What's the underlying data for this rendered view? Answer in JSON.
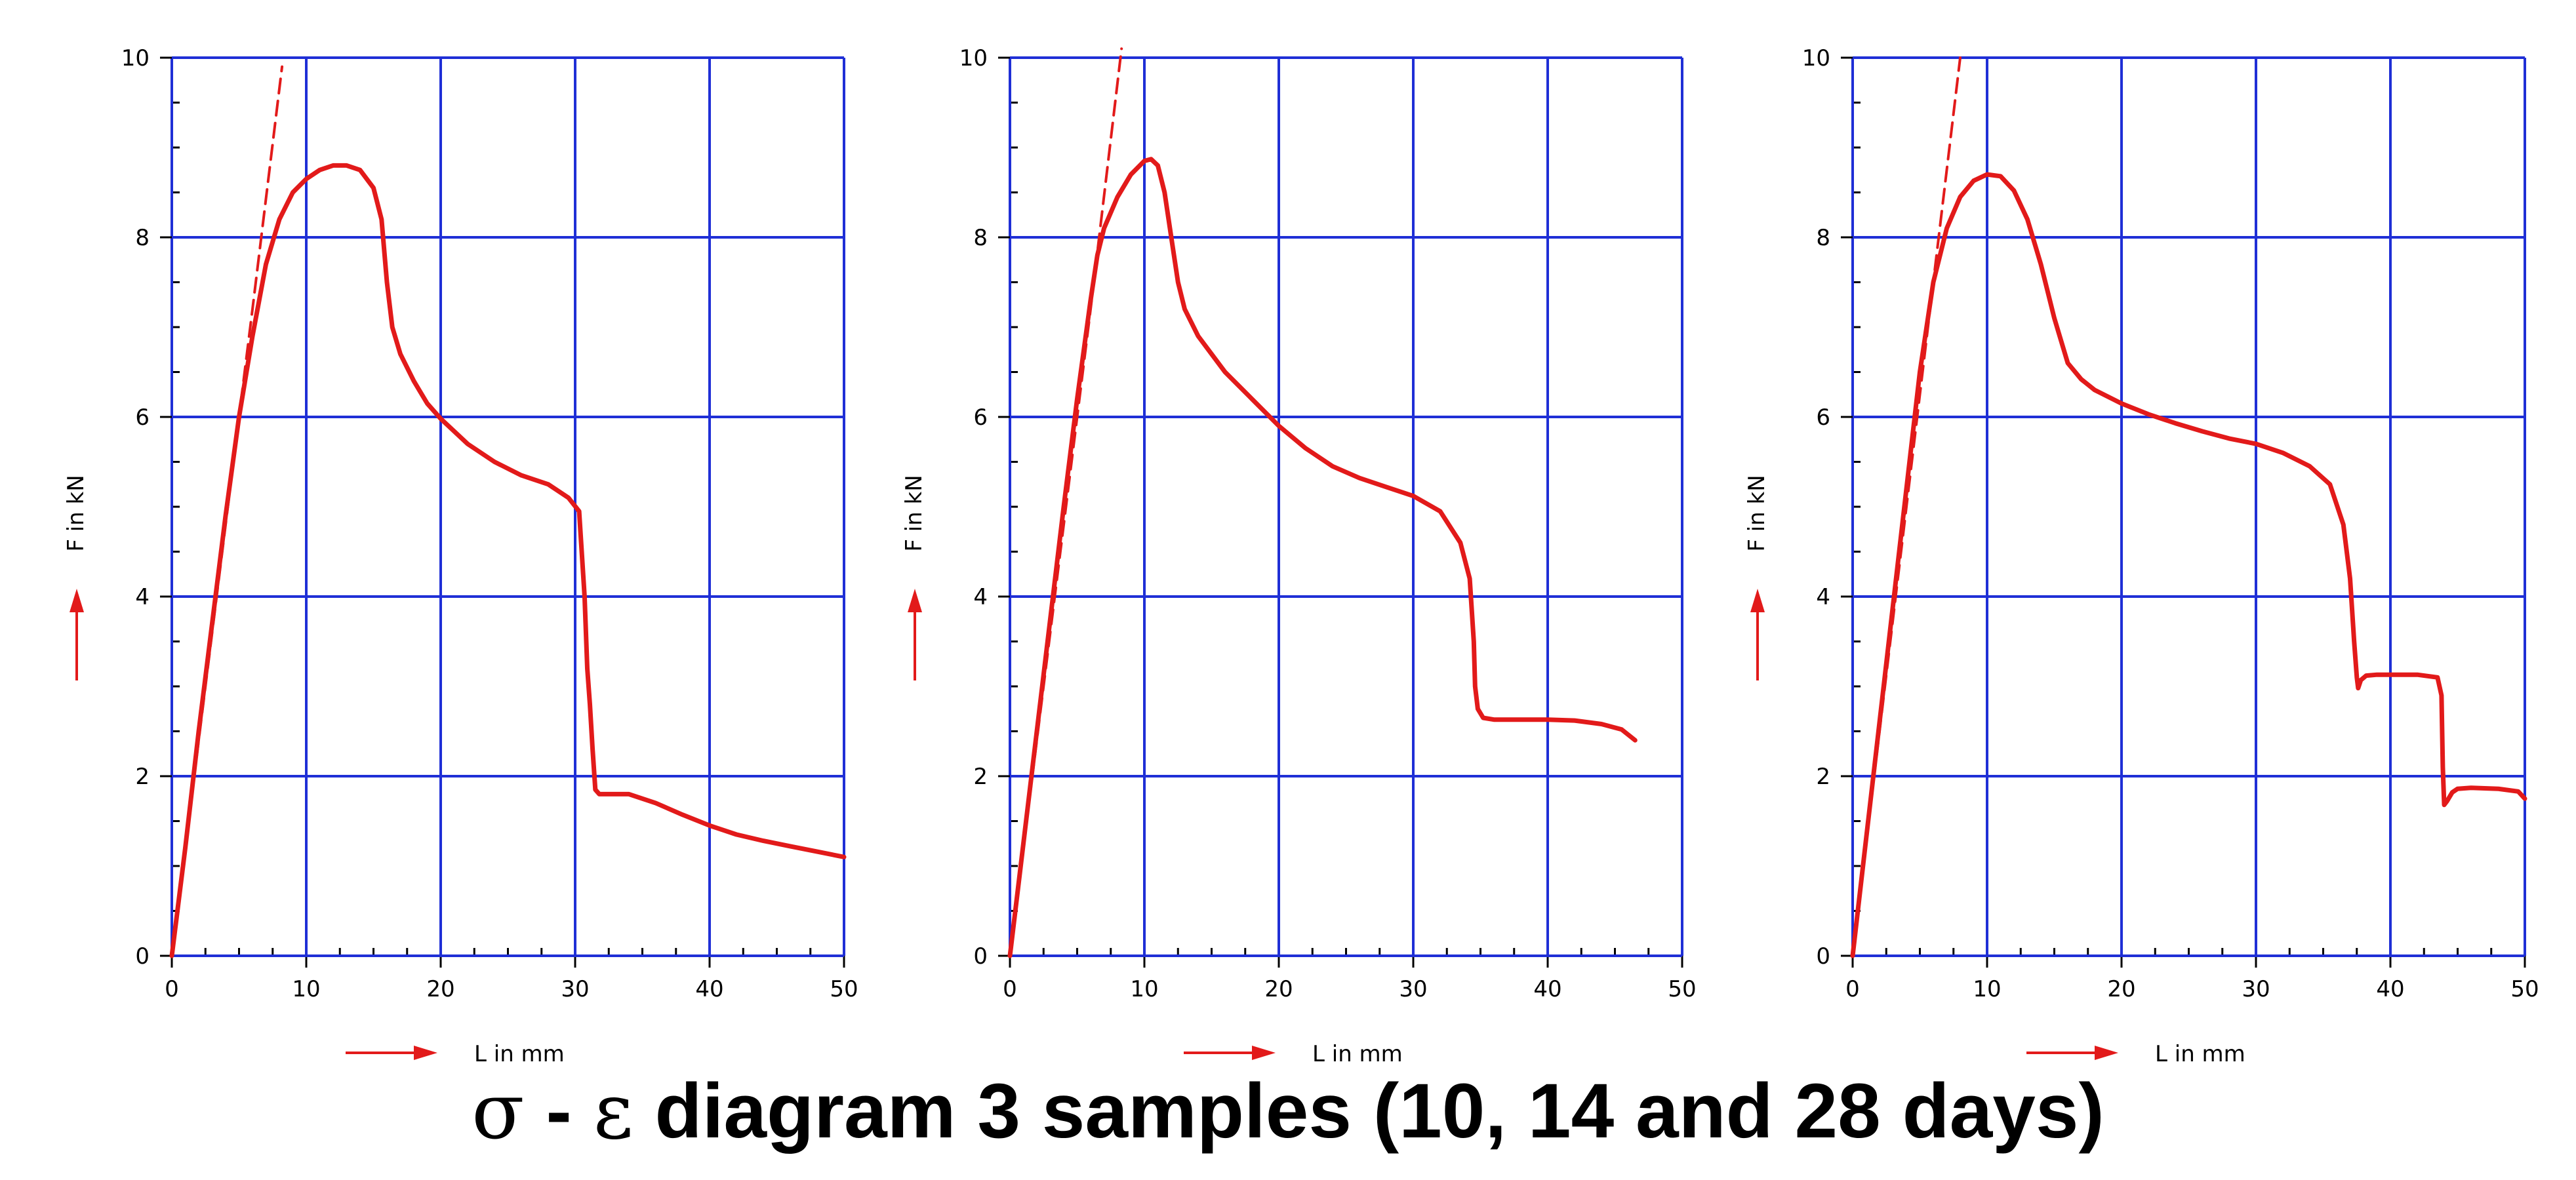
{
  "colors": {
    "grid": "#1f2fd6",
    "curve": "#e21a1a",
    "axis": "#000000",
    "background": "#ffffff"
  },
  "caption": {
    "greek_left": "σ",
    "dash": " - ",
    "greek_right": "ε",
    "rest": " diagram 3 samples (10, 14 and 28 days)"
  },
  "chart_data": [
    {
      "type": "line",
      "xlabel": "L in mm",
      "ylabel": "F in kN",
      "xlim": [
        0,
        50
      ],
      "ylim": [
        0,
        10
      ],
      "x_ticks": [
        "0",
        "10",
        "20",
        "30",
        "40",
        "50"
      ],
      "y_ticks": [
        "0",
        "2",
        "4",
        "6",
        "8",
        "10"
      ],
      "grid": true,
      "series": [
        {
          "style": "solid",
          "x": [
            0,
            1,
            2,
            3,
            4,
            5,
            6,
            7,
            8,
            9,
            10,
            11,
            12,
            13,
            14,
            15,
            15.6,
            16,
            16.4,
            17,
            18,
            19,
            20,
            22,
            24,
            26,
            28,
            29.5,
            30.3,
            30.7,
            30.9,
            31.1,
            31.3,
            31.5,
            31.8,
            32.5,
            34,
            36,
            38,
            40,
            42,
            44,
            46,
            48,
            50
          ],
          "y": [
            0,
            1.2,
            2.5,
            3.7,
            4.9,
            6.0,
            6.9,
            7.7,
            8.2,
            8.5,
            8.65,
            8.75,
            8.8,
            8.8,
            8.75,
            8.55,
            8.2,
            7.5,
            7.0,
            6.7,
            6.4,
            6.15,
            5.98,
            5.7,
            5.5,
            5.35,
            5.25,
            5.1,
            4.95,
            4.0,
            3.2,
            2.8,
            2.3,
            1.85,
            1.8,
            1.8,
            1.8,
            1.7,
            1.57,
            1.45,
            1.35,
            1.28,
            1.22,
            1.16,
            1.1
          ]
        },
        {
          "style": "dashed",
          "x": [
            0,
            2,
            4,
            6,
            8.2
          ],
          "y": [
            0,
            2.4,
            4.8,
            7.2,
            9.9
          ]
        }
      ]
    },
    {
      "type": "line",
      "xlabel": "L in mm",
      "ylabel": "F in kN",
      "xlim": [
        0,
        50
      ],
      "ylim": [
        0,
        10
      ],
      "x_ticks": [
        "0",
        "10",
        "20",
        "30",
        "40",
        "50"
      ],
      "y_ticks": [
        "0",
        "2",
        "4",
        "6",
        "8",
        "10"
      ],
      "grid": true,
      "series": [
        {
          "style": "solid",
          "x": [
            0,
            1,
            2,
            3,
            4,
            5,
            6,
            6.5,
            7,
            8,
            9,
            10,
            10.5,
            11,
            11.5,
            12,
            12.5,
            13,
            14,
            15,
            16,
            18,
            20,
            22,
            24,
            26,
            28,
            30,
            32,
            33.5,
            34.2,
            34.5,
            34.6,
            34.8,
            35.2,
            36,
            38,
            40,
            42,
            44,
            45.5,
            46.5
          ],
          "y": [
            0,
            1.25,
            2.5,
            3.75,
            5.0,
            6.2,
            7.3,
            7.8,
            8.1,
            8.45,
            8.7,
            8.85,
            8.87,
            8.8,
            8.5,
            8.0,
            7.5,
            7.2,
            6.9,
            6.7,
            6.5,
            6.2,
            5.9,
            5.65,
            5.45,
            5.32,
            5.22,
            5.12,
            4.95,
            4.6,
            4.2,
            3.5,
            3.0,
            2.75,
            2.65,
            2.63,
            2.63,
            2.63,
            2.62,
            2.58,
            2.52,
            2.4
          ]
        },
        {
          "style": "dashed",
          "x": [
            0,
            2,
            4,
            6,
            8.3
          ],
          "y": [
            0,
            2.4,
            4.8,
            7.2,
            10.1
          ]
        }
      ]
    },
    {
      "type": "line",
      "xlabel": "L in mm",
      "ylabel": "F in kN",
      "xlim": [
        0,
        50
      ],
      "ylim": [
        0,
        10
      ],
      "x_ticks": [
        "0",
        "10",
        "20",
        "30",
        "40",
        "50"
      ],
      "y_ticks": [
        "0",
        "2",
        "4",
        "6",
        "8",
        "10"
      ],
      "grid": true,
      "series": [
        {
          "style": "solid",
          "x": [
            0,
            1,
            2,
            3,
            4,
            5,
            6,
            7,
            8,
            9,
            10,
            11,
            12,
            13,
            14,
            15,
            16,
            17,
            18,
            20,
            22,
            24,
            26,
            28,
            30,
            32,
            34,
            35.5,
            36.5,
            37,
            37.3,
            37.5,
            37.6,
            37.8,
            38.2,
            39,
            40,
            42,
            43.5,
            43.8,
            43.9,
            44,
            44.2,
            44.6,
            45,
            46,
            48,
            49.5,
            50
          ],
          "y": [
            0,
            1.3,
            2.6,
            3.9,
            5.2,
            6.5,
            7.5,
            8.1,
            8.45,
            8.63,
            8.7,
            8.68,
            8.52,
            8.2,
            7.7,
            7.1,
            6.6,
            6.42,
            6.3,
            6.15,
            6.03,
            5.93,
            5.84,
            5.76,
            5.7,
            5.6,
            5.45,
            5.25,
            4.8,
            4.2,
            3.5,
            3.1,
            2.98,
            3.07,
            3.12,
            3.13,
            3.13,
            3.13,
            3.1,
            2.9,
            2.1,
            1.68,
            1.72,
            1.82,
            1.86,
            1.87,
            1.86,
            1.83,
            1.75
          ]
        },
        {
          "style": "dashed",
          "x": [
            0,
            2,
            4,
            6,
            8
          ],
          "y": [
            0,
            2.5,
            5.0,
            7.5,
            10.0
          ]
        }
      ]
    }
  ]
}
